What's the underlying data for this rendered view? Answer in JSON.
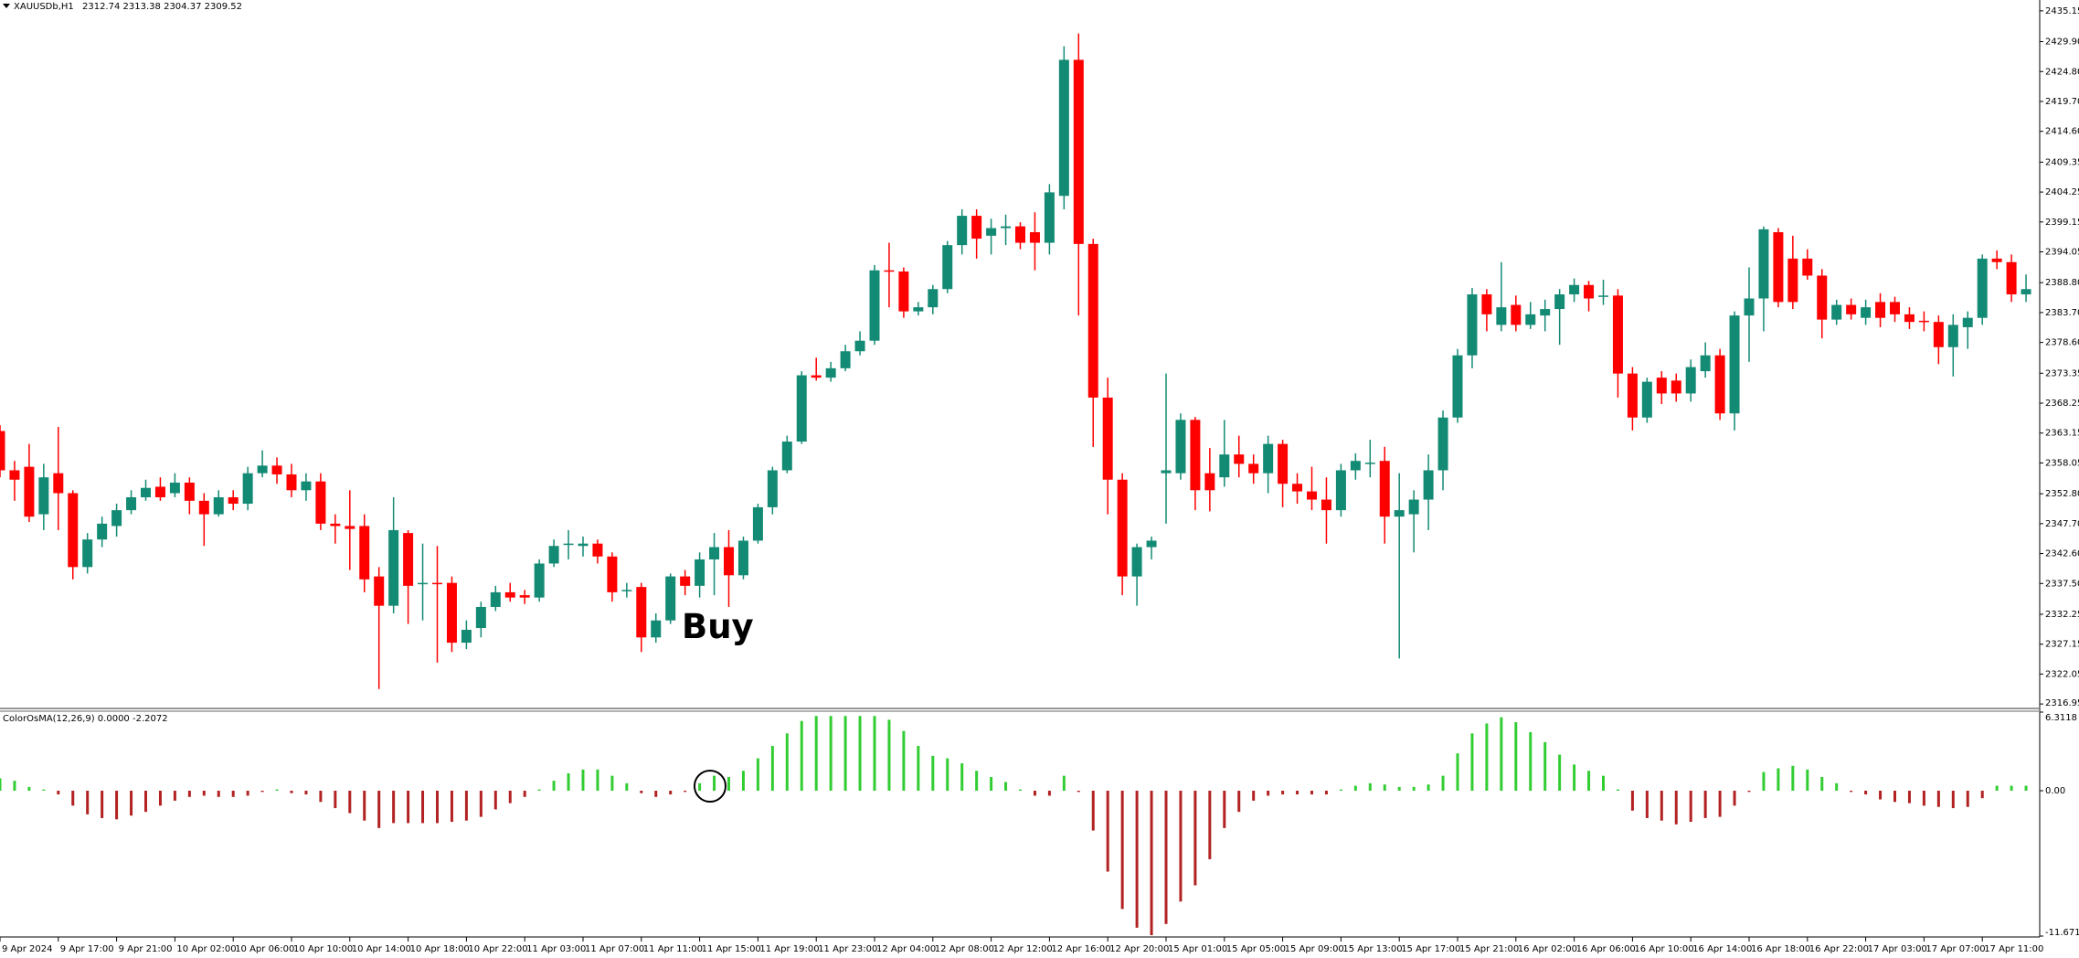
{
  "chart_data": [
    {
      "type": "candlestick",
      "title": "XAUUSDb,H1",
      "readout": [
        2312.74,
        2313.38,
        2304.37,
        2309.52
      ],
      "up_color": "#138a74",
      "down_color": "#ff0000",
      "ylim": [
        2316.5,
        2437.0
      ],
      "yticks": [
        2435.15,
        {
          "value": 2429.9,
          "label": "2429.90"
        },
        {
          "value": 2424.8,
          "label": "2424.80"
        },
        {
          "value": 2419.7,
          "label": "2419.70"
        },
        {
          "value": 2414.6,
          "label": "2414.60"
        },
        2409.35,
        2404.25,
        2399.15,
        2394.05,
        {
          "value": 2388.8,
          "label": "2388.80"
        },
        {
          "value": 2383.7,
          "label": "2383.70"
        },
        {
          "value": 2378.6,
          "label": "2378.60"
        },
        2373.35,
        2368.25,
        2363.15,
        2358.05,
        {
          "value": 2352.8,
          "label": "2352.80"
        },
        {
          "value": 2347.7,
          "label": "2347.70"
        },
        {
          "value": 2342.6,
          "label": "2342.60"
        },
        {
          "value": 2337.5,
          "label": "2337.50"
        },
        2332.25,
        2327.15,
        2322.05,
        2316.95
      ],
      "categories": [
        "9 Apr 2024",
        null,
        null,
        null,
        "9 Apr 17:00",
        null,
        null,
        null,
        "9 Apr 21:00",
        null,
        null,
        null,
        "10 Apr 02:00",
        null,
        null,
        null,
        "10 Apr 06:00",
        null,
        null,
        null,
        "10 Apr 10:00",
        null,
        null,
        null,
        "10 Apr 14:00",
        null,
        null,
        null,
        "10 Apr 18:00",
        null,
        null,
        null,
        "10 Apr 22:00",
        null,
        null,
        null,
        "11 Apr 03:00",
        null,
        null,
        null,
        "11 Apr 07:00",
        null,
        null,
        null,
        "11 Apr 11:00",
        null,
        null,
        null,
        "11 Apr 15:00",
        null,
        null,
        null,
        "11 Apr 19:00",
        null,
        null,
        null,
        "11 Apr 23:00",
        null,
        null,
        null,
        "12 Apr 04:00",
        null,
        null,
        null,
        "12 Apr 08:00",
        null,
        null,
        null,
        "12 Apr 12:00",
        null,
        null,
        null,
        "12 Apr 16:00",
        null,
        null,
        null,
        "12 Apr 20:00",
        null,
        null,
        null,
        "15 Apr 01:00",
        null,
        null,
        null,
        "15 Apr 05:00",
        null,
        null,
        null,
        "15 Apr 09:00",
        null,
        null,
        null,
        "15 Apr 13:00",
        null,
        null,
        null,
        "15 Apr 17:00",
        null,
        null,
        null,
        "15 Apr 21:00",
        null,
        null,
        null,
        "16 Apr 02:00",
        null,
        null,
        null,
        "16 Apr 06:00",
        null,
        null,
        null,
        "16 Apr 10:00",
        null,
        null,
        null,
        "16 Apr 14:00",
        null,
        null,
        null,
        "16 Apr 18:00",
        null,
        null,
        null,
        "16 Apr 22:00",
        null,
        null,
        null,
        "17 Apr 03:00",
        null,
        null,
        null,
        "17 Apr 07:00",
        null,
        null,
        null,
        "17 Apr 11:00",
        null,
        null,
        null
      ],
      "ohlc": [
        [
          2363.5,
          2364.5,
          2355.6,
          2356.8
        ],
        [
          2356.8,
          2358.4,
          2351.6,
          2355.2
        ],
        [
          2357.4,
          2361.3,
          2348.0,
          2348.9
        ],
        [
          2349.3,
          2357.9,
          2346.6,
          2355.6
        ],
        [
          2356.3,
          2364.2,
          2346.6,
          2352.9
        ],
        [
          2352.9,
          2353.4,
          2338.2,
          2340.3
        ],
        [
          2340.3,
          2346.1,
          2339.2,
          2345.0
        ],
        [
          2345.0,
          2348.9,
          2343.7,
          2347.7
        ],
        [
          2347.3,
          2351.1,
          2345.5,
          2350.0
        ],
        [
          2350.0,
          2353.4,
          2349.3,
          2352.2
        ],
        [
          2352.2,
          2355.2,
          2351.6,
          2353.8
        ],
        [
          2354.0,
          2355.6,
          2351.6,
          2352.2
        ],
        [
          2352.9,
          2356.3,
          2352.2,
          2354.7
        ],
        [
          2354.7,
          2355.6,
          2349.3,
          2351.6
        ],
        [
          2351.6,
          2352.9,
          2343.9,
          2349.3
        ],
        [
          2349.3,
          2353.4,
          2348.9,
          2352.2
        ],
        [
          2352.2,
          2353.4,
          2350.0,
          2351.1
        ],
        [
          2351.1,
          2357.4,
          2350.0,
          2356.3
        ],
        [
          2356.3,
          2360.2,
          2355.6,
          2357.6
        ],
        [
          2357.6,
          2359.0,
          2354.5,
          2356.1
        ],
        [
          2356.1,
          2357.9,
          2352.2,
          2353.4
        ],
        [
          2353.4,
          2356.3,
          2351.6,
          2354.9
        ],
        [
          2354.9,
          2356.3,
          2346.6,
          2347.7
        ],
        [
          2347.7,
          2349.3,
          2344.3,
          2347.3
        ],
        [
          2347.3,
          2353.4,
          2339.8,
          2346.8
        ],
        [
          2347.3,
          2349.3,
          2336.0,
          2338.2
        ],
        [
          2338.7,
          2340.3,
          2319.5,
          2333.7
        ],
        [
          2333.7,
          2352.2,
          2332.4,
          2346.6
        ],
        [
          2346.1,
          2346.6,
          2330.6,
          2337.1
        ],
        [
          2337.6,
          2344.3,
          2331.2,
          2337.6
        ],
        [
          2337.6,
          2343.9,
          2324.0,
          2337.4
        ],
        [
          2337.6,
          2338.7,
          2325.8,
          2327.4
        ],
        [
          2327.4,
          2331.2,
          2326.3,
          2329.6
        ],
        [
          2329.9,
          2334.4,
          2328.3,
          2333.5
        ],
        [
          2333.5,
          2337.1,
          2332.8,
          2336.0
        ],
        [
          2336.0,
          2337.6,
          2334.4,
          2335.1
        ],
        [
          2335.5,
          2336.4,
          2334.0,
          2335.1
        ],
        [
          2335.1,
          2341.6,
          2334.4,
          2340.9
        ],
        [
          2340.9,
          2345.0,
          2340.3,
          2343.9
        ],
        [
          2344.1,
          2346.6,
          2341.6,
          2344.3
        ],
        [
          2343.9,
          2345.5,
          2342.1,
          2344.3
        ],
        [
          2344.3,
          2345.0,
          2340.9,
          2342.1
        ],
        [
          2342.1,
          2342.8,
          2334.4,
          2336.0
        ],
        [
          2336.4,
          2337.6,
          2335.1,
          2336.4
        ],
        [
          2336.9,
          2337.6,
          2325.8,
          2328.3
        ],
        [
          2328.3,
          2332.4,
          2327.4,
          2331.2
        ],
        [
          2331.2,
          2339.2,
          2330.6,
          2338.7
        ],
        [
          2338.7,
          2339.8,
          2335.5,
          2337.1
        ],
        [
          2337.1,
          2342.8,
          2335.1,
          2341.6
        ],
        [
          2341.6,
          2346.1,
          2335.5,
          2343.7
        ],
        [
          2343.7,
          2346.6,
          2333.5,
          2338.9
        ],
        [
          2338.9,
          2345.5,
          2338.2,
          2344.8
        ],
        [
          2344.8,
          2351.1,
          2344.3,
          2350.5
        ],
        [
          2350.5,
          2357.4,
          2349.3,
          2356.8
        ],
        [
          2356.8,
          2362.7,
          2356.3,
          2361.7
        ],
        [
          2361.7,
          2373.7,
          2361.3,
          2373.0
        ],
        [
          2373.0,
          2376.0,
          2372.1,
          2372.6
        ],
        [
          2372.6,
          2375.3,
          2371.9,
          2374.2
        ],
        [
          2374.2,
          2378.2,
          2373.7,
          2377.1
        ],
        [
          2377.1,
          2380.5,
          2376.4,
          2378.9
        ],
        [
          2378.9,
          2391.8,
          2378.2,
          2390.9
        ],
        [
          2390.9,
          2395.6,
          2384.6,
          2390.7
        ],
        [
          2390.7,
          2391.4,
          2382.8,
          2383.9
        ],
        [
          2383.9,
          2385.5,
          2383.2,
          2384.6
        ],
        [
          2384.6,
          2388.4,
          2383.4,
          2387.7
        ],
        [
          2387.7,
          2395.9,
          2387.0,
          2395.2
        ],
        [
          2395.2,
          2401.3,
          2393.6,
          2400.2
        ],
        [
          2400.2,
          2401.3,
          2392.9,
          2396.3
        ],
        [
          2396.8,
          2399.7,
          2393.6,
          2398.1
        ],
        [
          2398.1,
          2400.4,
          2395.2,
          2398.4
        ],
        [
          2398.4,
          2399.1,
          2394.5,
          2395.6
        ],
        [
          2397.4,
          2400.8,
          2390.9,
          2395.6
        ],
        [
          2395.6,
          2405.6,
          2393.6,
          2404.2
        ],
        [
          2403.6,
          2429.1,
          2401.3,
          2426.8
        ],
        [
          2426.8,
          2431.3,
          2383.2,
          2395.4
        ],
        [
          2395.4,
          2396.3,
          2360.8,
          2369.2
        ],
        [
          2369.2,
          2372.6,
          2349.3,
          2355.2
        ],
        [
          2355.2,
          2356.3,
          2335.5,
          2338.7
        ],
        [
          2338.7,
          2344.3,
          2333.7,
          2343.7
        ],
        [
          2343.7,
          2345.5,
          2341.6,
          2344.8
        ],
        [
          2356.3,
          2373.3,
          2347.7,
          2356.8
        ],
        [
          2356.3,
          2366.5,
          2355.2,
          2365.4
        ],
        [
          2365.4,
          2365.9,
          2350.0,
          2353.4
        ],
        [
          2356.3,
          2360.6,
          2349.8,
          2353.4
        ],
        [
          2355.6,
          2365.4,
          2354.0,
          2359.5
        ],
        [
          2359.5,
          2362.7,
          2355.6,
          2357.9
        ],
        [
          2357.9,
          2359.5,
          2354.5,
          2356.3
        ],
        [
          2356.3,
          2362.7,
          2352.9,
          2361.3
        ],
        [
          2361.3,
          2362.0,
          2350.5,
          2354.5
        ],
        [
          2354.5,
          2356.3,
          2351.1,
          2353.2
        ],
        [
          2353.2,
          2357.4,
          2350.0,
          2351.8
        ],
        [
          2351.8,
          2355.6,
          2344.3,
          2350.0
        ],
        [
          2350.0,
          2357.9,
          2348.9,
          2356.8
        ],
        [
          2356.8,
          2359.7,
          2355.2,
          2358.4
        ],
        [
          2357.9,
          2362.0,
          2355.6,
          2358.1
        ],
        [
          2358.4,
          2360.8,
          2344.3,
          2348.9
        ],
        [
          2348.9,
          2356.3,
          2324.7,
          2350.0
        ],
        [
          2349.3,
          2353.4,
          2342.8,
          2351.8
        ],
        [
          2351.8,
          2359.5,
          2346.6,
          2356.8
        ],
        [
          2356.8,
          2367.0,
          2353.4,
          2365.8
        ],
        [
          2365.8,
          2377.5,
          2364.9,
          2376.4
        ],
        [
          2376.4,
          2387.9,
          2374.2,
          2386.8
        ],
        [
          2386.8,
          2387.7,
          2380.5,
          2383.4
        ],
        [
          2381.6,
          2392.3,
          2380.5,
          2384.6
        ],
        [
          2385.0,
          2386.6,
          2380.5,
          2381.6
        ],
        [
          2381.6,
          2385.5,
          2380.9,
          2383.4
        ],
        [
          2383.2,
          2385.9,
          2380.5,
          2384.3
        ],
        [
          2384.3,
          2387.7,
          2378.2,
          2386.8
        ],
        [
          2386.8,
          2389.5,
          2385.5,
          2388.4
        ],
        [
          2388.4,
          2389.1,
          2383.9,
          2386.1
        ],
        [
          2386.4,
          2389.3,
          2385.0,
          2386.6
        ],
        [
          2386.6,
          2387.7,
          2369.2,
          2373.3
        ],
        [
          2373.3,
          2374.4,
          2363.6,
          2365.8
        ],
        [
          2365.8,
          2372.6,
          2364.9,
          2371.9
        ],
        [
          2372.6,
          2373.7,
          2368.1,
          2369.9
        ],
        [
          2372.1,
          2373.3,
          2368.5,
          2369.9
        ],
        [
          2369.9,
          2375.7,
          2368.5,
          2374.4
        ],
        [
          2373.7,
          2378.6,
          2372.6,
          2376.4
        ],
        [
          2376.4,
          2377.5,
          2365.4,
          2366.5
        ],
        [
          2366.5,
          2383.9,
          2363.6,
          2383.2
        ],
        [
          2383.2,
          2391.4,
          2375.3,
          2386.1
        ],
        [
          2386.1,
          2398.4,
          2380.5,
          2397.9
        ],
        [
          2397.4,
          2398.1,
          2384.6,
          2385.5
        ],
        [
          2392.9,
          2396.8,
          2384.3,
          2385.5
        ],
        [
          2392.9,
          2394.5,
          2389.3,
          2390.0
        ],
        [
          2390.0,
          2391.1,
          2379.3,
          2382.5
        ],
        [
          2382.5,
          2385.9,
          2381.6,
          2385.0
        ],
        [
          2385.0,
          2386.1,
          2382.5,
          2383.4
        ],
        [
          2382.8,
          2385.9,
          2381.6,
          2384.6
        ],
        [
          2385.5,
          2387.0,
          2381.2,
          2382.8
        ],
        [
          2385.5,
          2386.4,
          2382.1,
          2383.4
        ],
        [
          2383.4,
          2384.6,
          2380.9,
          2382.1
        ],
        [
          2382.3,
          2383.9,
          2380.5,
          2382.1
        ],
        [
          2382.1,
          2383.2,
          2374.9,
          2377.8
        ],
        [
          2377.8,
          2383.4,
          2372.8,
          2381.6
        ],
        [
          2381.2,
          2383.9,
          2377.5,
          2382.8
        ],
        [
          2382.8,
          2393.6,
          2381.6,
          2392.9
        ],
        [
          2392.9,
          2394.3,
          2391.1,
          2392.3
        ],
        [
          2392.3,
          2393.6,
          2385.5,
          2386.8
        ],
        [
          2386.8,
          2390.2,
          2385.5,
          2387.7
        ]
      ]
    },
    {
      "type": "bar",
      "title": "ColorOsMA(12,26,9) 0.0000 -2.2072",
      "positive_color": "#32cd32",
      "negative_color": "#b22222",
      "ylim": [
        -11.6717,
        6.3118
      ],
      "yticks": [
        6.3118,
        {
          "value": 0,
          "label": "0.00"
        },
        -11.6717
      ],
      "values": [
        1.0,
        0.8,
        0.3,
        0.1,
        -0.3,
        -1.2,
        -1.9,
        -2.2,
        -2.3,
        -2.0,
        -1.7,
        -1.2,
        -0.8,
        -0.5,
        -0.4,
        -0.5,
        -0.5,
        -0.4,
        -0.1,
        0.1,
        -0.2,
        -0.3,
        -0.9,
        -1.4,
        -1.8,
        -2.4,
        -3.0,
        -2.6,
        -2.6,
        -2.6,
        -2.6,
        -2.5,
        -2.4,
        -2.1,
        -1.5,
        -1.0,
        -0.5,
        0.1,
        0.8,
        1.4,
        1.7,
        1.7,
        1.2,
        0.6,
        -0.2,
        -0.5,
        -0.3,
        -0.1,
        0.6,
        1.2,
        1.1,
        1.6,
        2.6,
        3.6,
        4.6,
        5.6,
        6.0,
        6.0,
        6.0,
        6.0,
        6.0,
        5.7,
        4.8,
        3.6,
        2.8,
        2.6,
        2.2,
        1.6,
        1.1,
        0.7,
        0.1,
        -0.4,
        -0.4,
        1.2,
        -0.1,
        -3.2,
        -6.5,
        -9.5,
        -11.0,
        -11.6,
        -10.7,
        -8.9,
        -7.6,
        -5.5,
        -3.0,
        -1.7,
        -0.8,
        -0.4,
        -0.3,
        -0.3,
        -0.3,
        -0.3,
        0.1,
        0.4,
        0.6,
        0.5,
        0.3,
        0.3,
        0.5,
        1.2,
        3.0,
        4.6,
        5.4,
        5.9,
        5.5,
        4.7,
        3.9,
        2.9,
        2.1,
        1.6,
        1.2,
        0.1,
        -1.6,
        -2.2,
        -2.4,
        -2.7,
        -2.5,
        -2.2,
        -2.1,
        -1.2,
        -0.1,
        1.5,
        1.8,
        2.0,
        1.7,
        1.1,
        0.6,
        -0.1,
        -0.3,
        -0.7,
        -0.9,
        -1.0,
        -1.2,
        -1.3,
        -1.4,
        -1.3,
        -0.6,
        0.4,
        0.4,
        0.4
      ]
    }
  ]
}
